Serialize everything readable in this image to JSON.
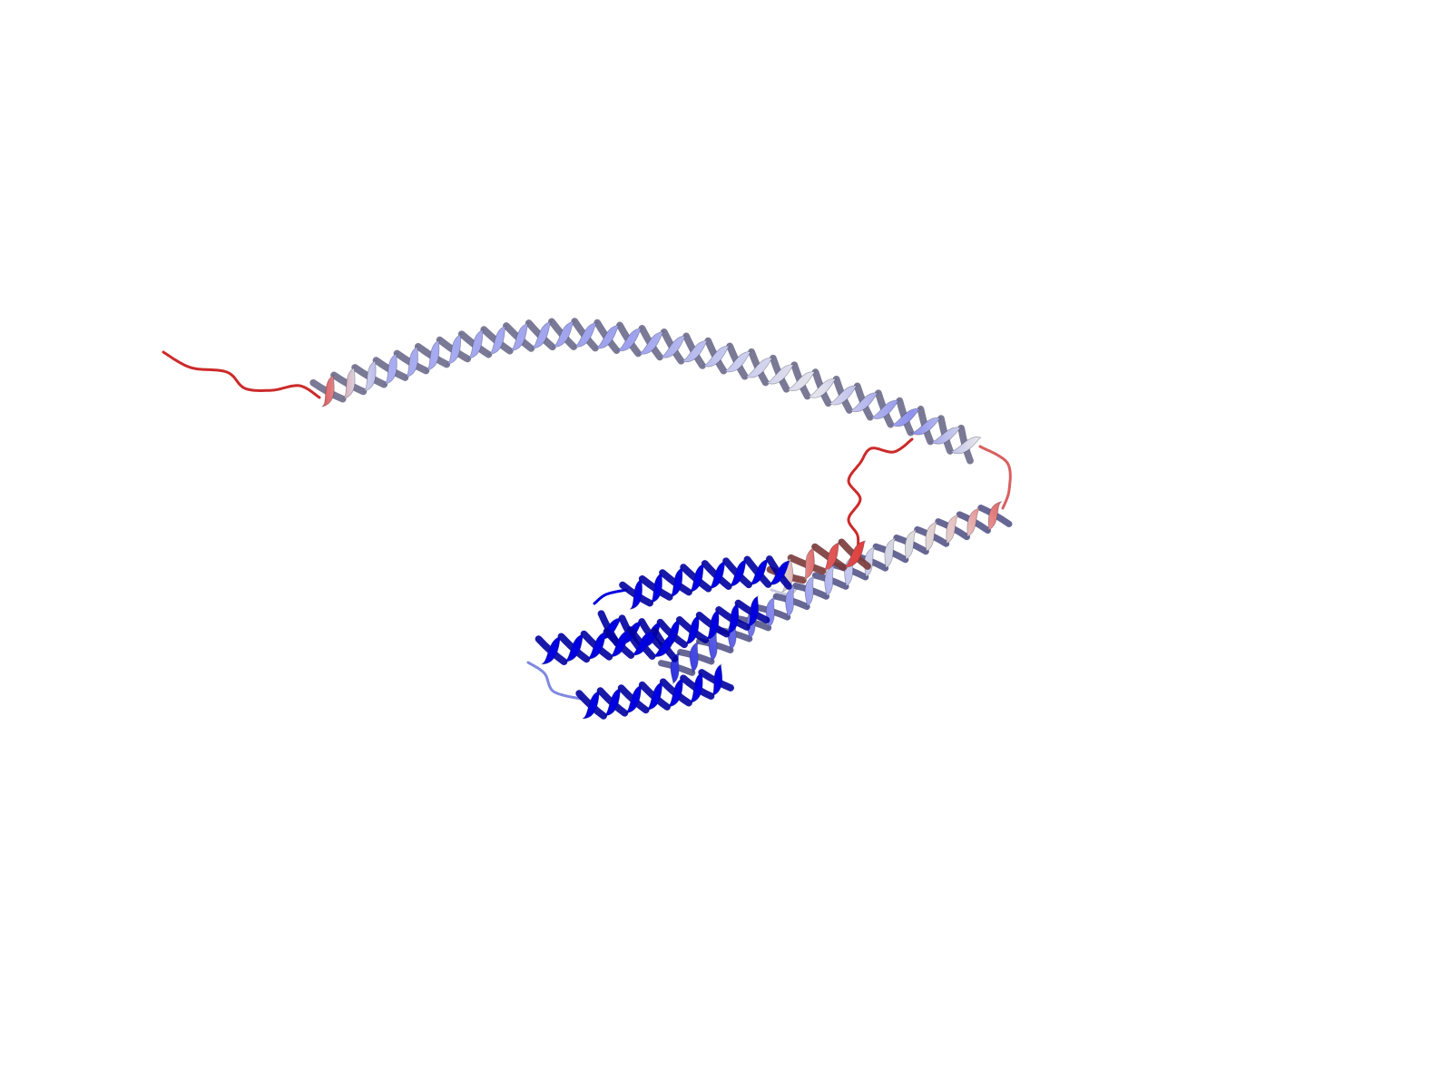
{
  "scene": {
    "subject": "protein-cartoon-ribbon",
    "background": "#ffffff",
    "coloring": {
      "high": "#0000e0",
      "mid_high": "#8a8ef0",
      "neutral": "#e6e6e6",
      "low": "#e04848",
      "coil": "#cc2a2a"
    }
  }
}
